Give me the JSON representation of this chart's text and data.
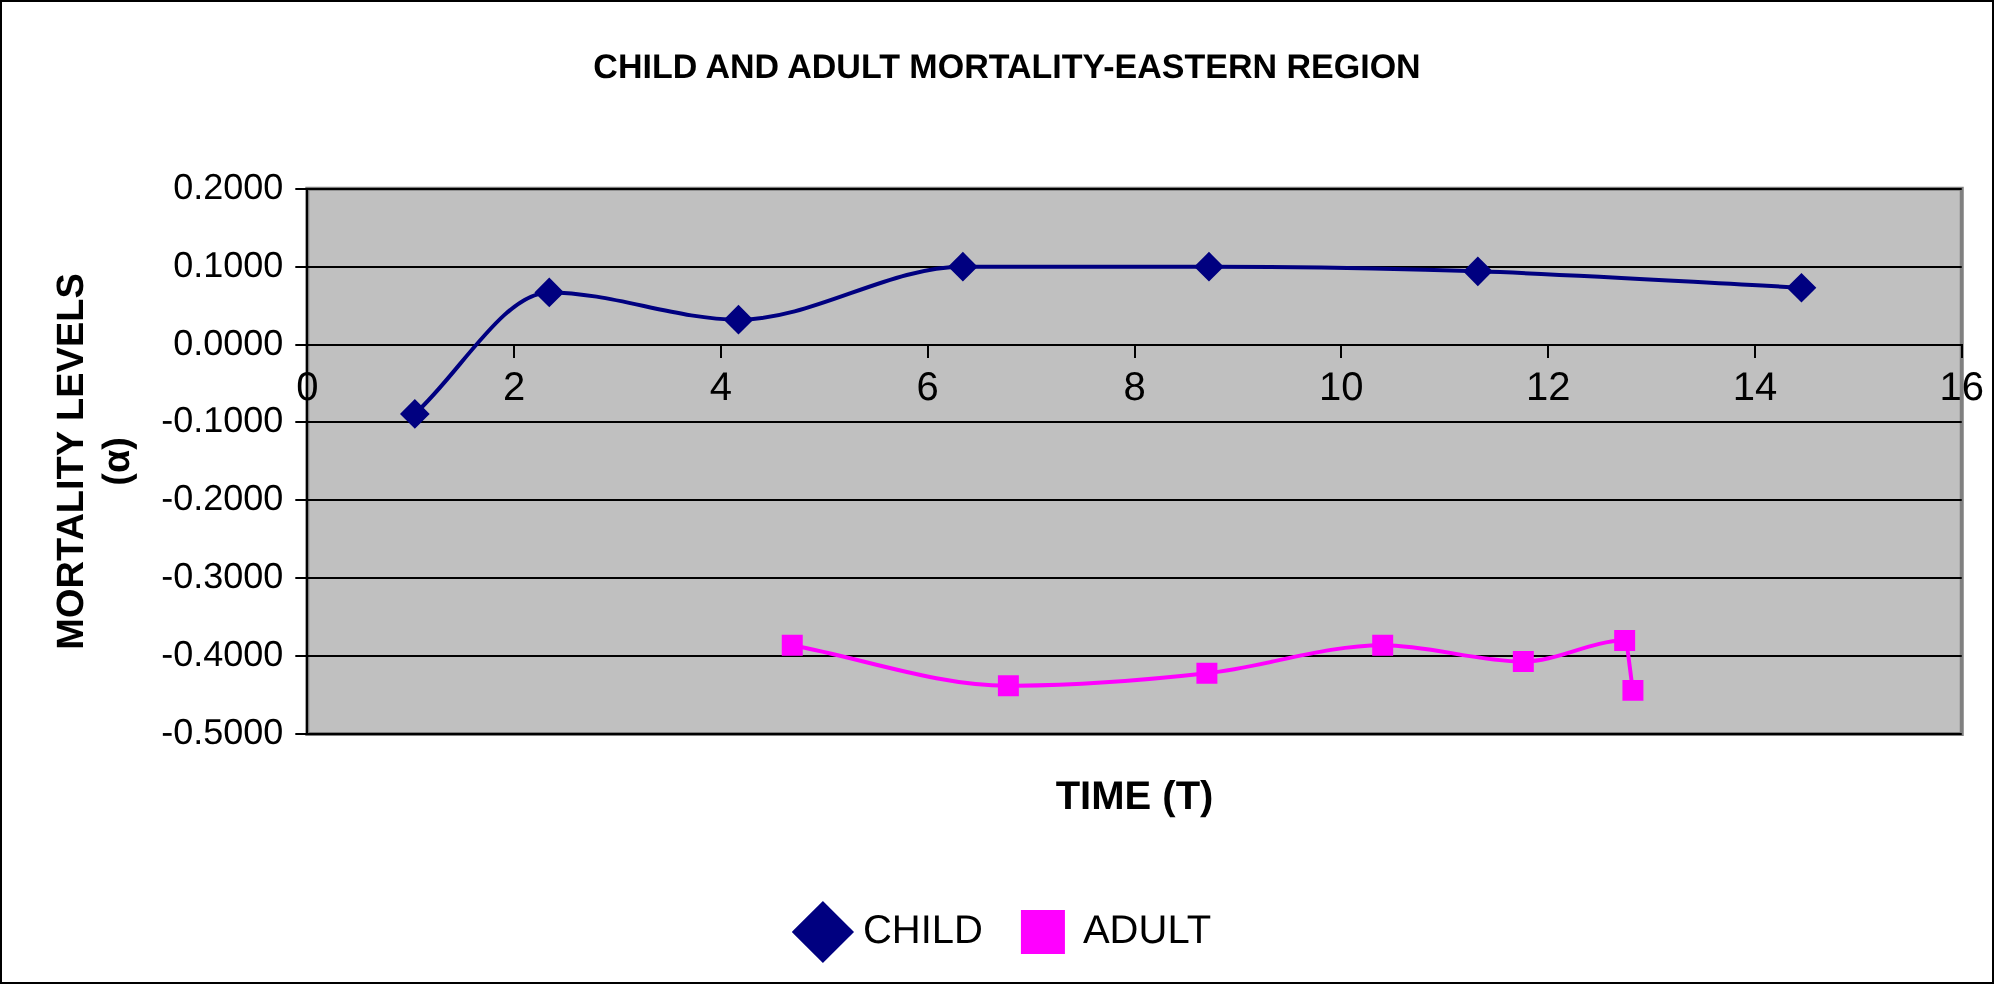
{
  "chart_data": {
    "type": "line",
    "title": "CHILD AND ADULT MORTALITY-EASTERN REGION",
    "xlabel": "TIME (T)",
    "ylabel": "MORTALITY LEVELS (α)",
    "xlim": [
      0,
      16
    ],
    "xticks": [
      0,
      2,
      4,
      6,
      8,
      10,
      12,
      14,
      16
    ],
    "ylim": [
      -0.5,
      0.2
    ],
    "yticks": [
      {
        "value": -0.5,
        "label": "-0.5000"
      },
      {
        "value": -0.4,
        "label": "-0.4000"
      },
      {
        "value": -0.3,
        "label": "-0.3000"
      },
      {
        "value": -0.2,
        "label": "-0.2000"
      },
      {
        "value": -0.1,
        "label": "-0.1000"
      },
      {
        "value": 0,
        "label": "0.0000"
      },
      {
        "value": 0.1,
        "label": "0.1000"
      },
      {
        "value": 0.2,
        "label": "0.2000"
      }
    ],
    "grid": "y",
    "legend": "bottom",
    "series": [
      {
        "name": "CHILD",
        "color": "#000080",
        "marker": "diamond",
        "x": [
          1.04,
          2.34,
          4.17,
          6.34,
          8.72,
          11.32,
          14.45
        ],
        "values": [
          -0.089,
          0.067,
          0.032,
          0.1,
          0.1,
          0.094,
          0.073
        ]
      },
      {
        "name": "ADULT",
        "color": "#ff00ff",
        "marker": "square",
        "x": [
          4.69,
          6.78,
          8.7,
          10.4,
          11.76,
          12.74,
          12.82
        ],
        "values": [
          -0.386,
          -0.438,
          -0.422,
          -0.386,
          -0.407,
          -0.38,
          -0.444
        ]
      }
    ]
  }
}
